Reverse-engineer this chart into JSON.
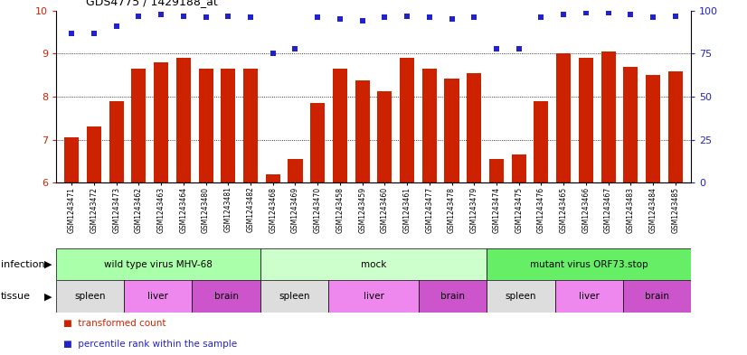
{
  "title": "GDS4775 / 1429188_at",
  "samples": [
    "GSM1243471",
    "GSM1243472",
    "GSM1243473",
    "GSM1243462",
    "GSM1243463",
    "GSM1243464",
    "GSM1243480",
    "GSM1243481",
    "GSM1243482",
    "GSM1243468",
    "GSM1243469",
    "GSM1243470",
    "GSM1243458",
    "GSM1243459",
    "GSM1243460",
    "GSM1243461",
    "GSM1243477",
    "GSM1243478",
    "GSM1243479",
    "GSM1243474",
    "GSM1243475",
    "GSM1243476",
    "GSM1243465",
    "GSM1243466",
    "GSM1243467",
    "GSM1243483",
    "GSM1243484",
    "GSM1243485"
  ],
  "bar_values": [
    7.05,
    7.3,
    7.9,
    8.65,
    8.8,
    8.9,
    8.65,
    8.65,
    8.65,
    6.2,
    6.55,
    7.85,
    8.65,
    8.38,
    8.12,
    8.9,
    8.65,
    8.42,
    8.55,
    6.55,
    6.65,
    7.9,
    9.0,
    8.9,
    9.05,
    8.7,
    8.5,
    8.6
  ],
  "dot_values": [
    87,
    87,
    91,
    97,
    98,
    97,
    96,
    97,
    96,
    75,
    78,
    96,
    95,
    94,
    96,
    97,
    96,
    95,
    96,
    78,
    78,
    96,
    98,
    99,
    99,
    98,
    96,
    97
  ],
  "ylim_left": [
    6,
    10
  ],
  "ylim_right": [
    0,
    100
  ],
  "bar_color": "#cc2200",
  "dot_color": "#2222cc",
  "bg_color": "#f0f0f0",
  "plot_bg": "#ffffff",
  "infection_groups": [
    {
      "label": "wild type virus MHV-68",
      "start": 0,
      "end": 9,
      "color": "#aaffaa"
    },
    {
      "label": "mock",
      "start": 9,
      "end": 19,
      "color": "#ccffcc"
    },
    {
      "label": "mutant virus ORF73.stop",
      "start": 19,
      "end": 28,
      "color": "#66ee66"
    }
  ],
  "tissue_groups": [
    {
      "label": "spleen",
      "start": 0,
      "end": 3,
      "color": "#dddddd"
    },
    {
      "label": "liver",
      "start": 3,
      "end": 6,
      "color": "#ee88ee"
    },
    {
      "label": "brain",
      "start": 6,
      "end": 9,
      "color": "#cc55cc"
    },
    {
      "label": "spleen",
      "start": 9,
      "end": 12,
      "color": "#dddddd"
    },
    {
      "label": "liver",
      "start": 12,
      "end": 16,
      "color": "#ee88ee"
    },
    {
      "label": "brain",
      "start": 16,
      "end": 19,
      "color": "#cc55cc"
    },
    {
      "label": "spleen",
      "start": 19,
      "end": 22,
      "color": "#dddddd"
    },
    {
      "label": "liver",
      "start": 22,
      "end": 25,
      "color": "#ee88ee"
    },
    {
      "label": "brain",
      "start": 25,
      "end": 28,
      "color": "#cc55cc"
    }
  ],
  "yticks_left": [
    6,
    7,
    8,
    9,
    10
  ],
  "yticks_right": [
    0,
    25,
    50,
    75,
    100
  ]
}
